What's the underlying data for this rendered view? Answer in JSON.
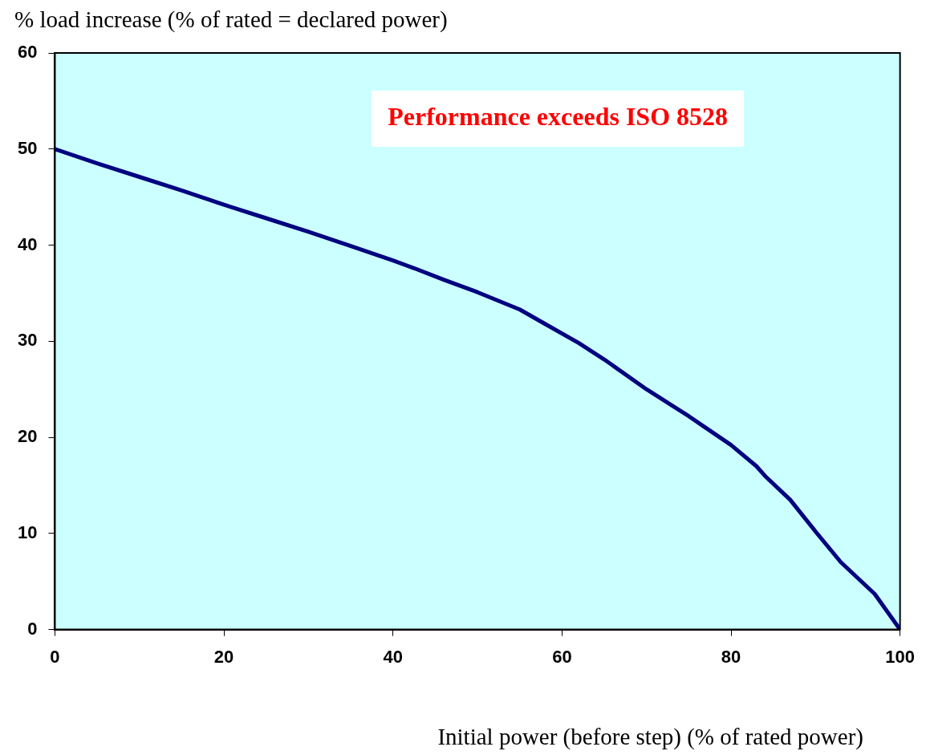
{
  "chart_data": {
    "type": "line",
    "xlabel": "Initial power (before step) (% of rated power)",
    "ylabel": "% load increase (% of rated = declared power)",
    "annotations": [
      "Performance exceeds ISO 8528"
    ],
    "x": [
      0,
      5,
      10,
      15,
      20,
      25,
      30,
      35,
      40,
      42.5,
      46,
      50,
      55,
      58,
      62,
      65,
      70,
      75,
      77,
      80,
      83,
      84,
      87,
      90,
      93,
      97,
      100
    ],
    "series": [
      {
        "color": "#000080",
        "values": [
          50,
          48.5,
          47.1,
          45.7,
          44.2,
          42.8,
          41.4,
          39.9,
          38.4,
          37.6,
          36.4,
          35.1,
          33.3,
          31.8,
          29.8,
          28.1,
          25,
          22.2,
          21,
          19.2,
          17,
          16,
          13.5,
          10.2,
          7,
          3.7,
          0
        ]
      }
    ],
    "xlim": [
      0,
      100
    ],
    "xticks": [
      0,
      20,
      40,
      60,
      80,
      100
    ],
    "ylim": [
      0,
      60
    ],
    "yticks": [
      0,
      10,
      20,
      30,
      40,
      50,
      60
    ],
    "grid": false,
    "legend": false,
    "marker": "none",
    "line_style": "solid"
  }
}
